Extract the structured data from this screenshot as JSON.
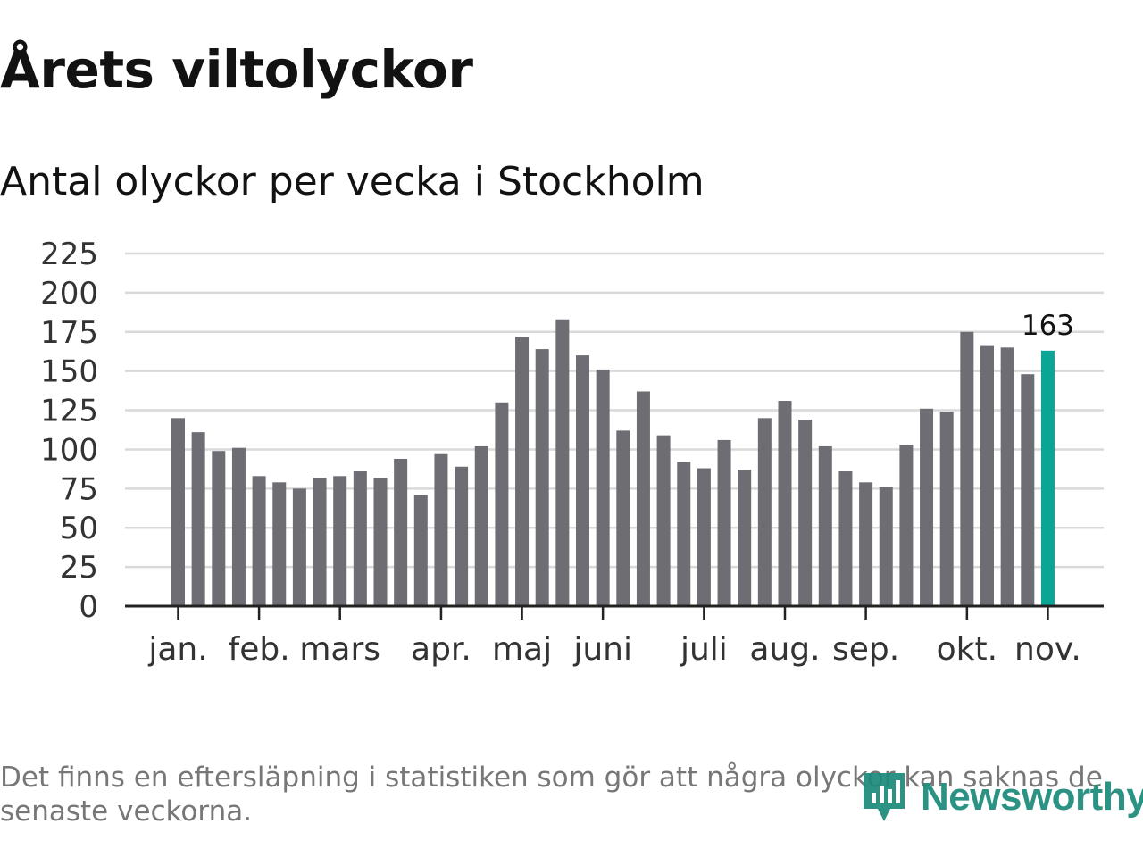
{
  "title": "Årets viltolyckor",
  "subtitle": "Antal olyckor per vecka i Stockholm",
  "footnote": "Det finns en eftersläpning i statistiken som gör att några olyckor kan saknas de senaste veckorna.",
  "logo": {
    "name": "Newsworthy",
    "icon": "newsworthy-logo-icon"
  },
  "colors": {
    "bar": "#6e6d74",
    "highlight": "#0ba595",
    "grid": "#d9d9d9",
    "axis": "#222222",
    "logo": "#1b8a7a"
  },
  "chart_data": {
    "type": "bar",
    "title": "Antal olyckor per vecka i Stockholm",
    "xlabel": "",
    "ylabel": "",
    "ylim": [
      0,
      225
    ],
    "yticks": [
      0,
      25,
      50,
      75,
      100,
      125,
      150,
      175,
      200,
      225
    ],
    "grid": true,
    "legend": "none",
    "values": [
      120,
      111,
      99,
      101,
      83,
      79,
      75,
      82,
      83,
      86,
      82,
      94,
      71,
      97,
      89,
      102,
      130,
      172,
      164,
      183,
      160,
      151,
      112,
      137,
      109,
      92,
      88,
      106,
      87,
      120,
      131,
      119,
      102,
      86,
      79,
      76,
      103,
      126,
      124,
      175,
      166,
      165,
      148,
      163
    ],
    "highlight_index": 43,
    "highlight_label": "163",
    "month_ticks": [
      {
        "label": "jan.",
        "week_index": 0
      },
      {
        "label": "feb.",
        "week_index": 4
      },
      {
        "label": "mars",
        "week_index": 8
      },
      {
        "label": "apr.",
        "week_index": 13
      },
      {
        "label": "maj",
        "week_index": 17
      },
      {
        "label": "juni",
        "week_index": 21
      },
      {
        "label": "juli",
        "week_index": 26
      },
      {
        "label": "aug.",
        "week_index": 30
      },
      {
        "label": "sep.",
        "week_index": 34
      },
      {
        "label": "okt.",
        "week_index": 39
      },
      {
        "label": "nov.",
        "week_index": 43
      }
    ]
  }
}
